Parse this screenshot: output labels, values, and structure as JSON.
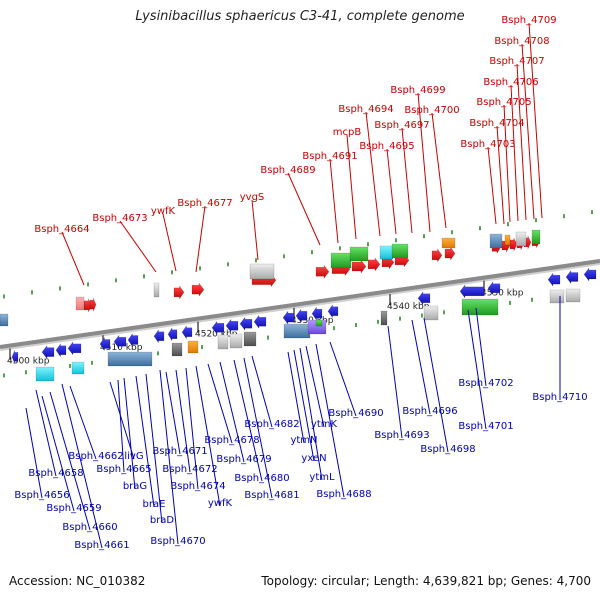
{
  "title": "Lysinibacillus sphaericus C3-41, complete genome",
  "footer": {
    "accession": "Accession: NC_010382",
    "summary": "Topology: circular; Length: 4,639,821 bp; Genes: 4,700"
  },
  "colors": {
    "forward": "#ee0000",
    "reverse": "#1010cc",
    "backbone": "#8a8a8a",
    "tick": "#2a8a2a",
    "label_fwd": "#cc0000",
    "label_rev": "#0000bb"
  },
  "ticks": [
    {
      "label": "4500 kbp"
    },
    {
      "label": "4510 kbp"
    },
    {
      "label": "4520 kbp"
    },
    {
      "label": "4530 kbp"
    },
    {
      "label": "4540 kbp"
    },
    {
      "label": "4550 kbp"
    }
  ],
  "forward_labels": [
    "Bsph_4664",
    "Bsph_4673",
    "ywfK",
    "Bsph_4677",
    "yvgS",
    "Bsph_4689",
    "Bsph_4691",
    "mcpB",
    "Bsph_4694",
    "Bsph_4695",
    "Bsph_4697",
    "Bsph_4699",
    "Bsph_4700",
    "Bsph_4703",
    "Bsph_4704",
    "Bsph_4705",
    "Bsph_4706",
    "Bsph_4707",
    "Bsph_4708",
    "Bsph_4709"
  ],
  "reverse_labels": [
    "Bsph_4656",
    "Bsph_4658",
    "Bsph_4659",
    "Bsph_4660",
    "Bsph_4661",
    "Bsph_4662",
    "livG",
    "Bsph_4665",
    "braG",
    "braE",
    "braD",
    "Bsph_4670",
    "Bsph_4671",
    "Bsph_4672",
    "Bsph_4674",
    "ywfK",
    "Bsph_4678",
    "Bsph_4679",
    "Bsph_4680",
    "Bsph_4681",
    "Bsph_4682",
    "ytmN",
    "yxeN",
    "ytmL",
    "ytmK",
    "Bsph_4688",
    "Bsph_4690",
    "Bsph_4693",
    "Bsph_4696",
    "Bsph_4698",
    "Bsph_4701",
    "Bsph_4702",
    "Bsph_4710"
  ]
}
